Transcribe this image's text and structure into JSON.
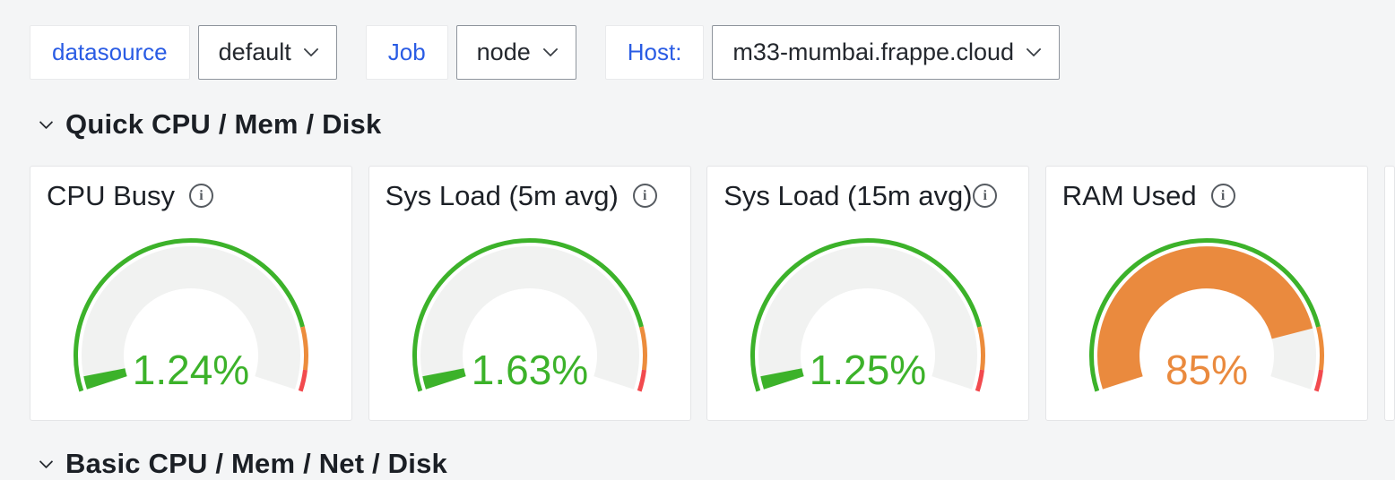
{
  "filters": {
    "groups": [
      {
        "label": "datasource",
        "value": "default"
      },
      {
        "label": "Job",
        "value": "node"
      },
      {
        "label": "Host:",
        "value": "m33-mumbai.frappe.cloud"
      }
    ]
  },
  "sections": {
    "quick": {
      "title": "Quick CPU / Mem / Disk"
    },
    "basic": {
      "title": "Basic CPU / Mem / Net / Disk"
    }
  },
  "panels": [
    {
      "title": "CPU Busy",
      "value": 1.24,
      "display": "1.24%",
      "state": "ok"
    },
    {
      "title": "Sys Load (5m avg)",
      "value": 1.63,
      "display": "1.63%",
      "state": "ok"
    },
    {
      "title": "Sys Load (15m avg)",
      "value": 1.25,
      "display": "1.25%",
      "state": "ok"
    },
    {
      "title": "RAM Used",
      "value": 85,
      "display": "85%",
      "state": "warning"
    }
  ],
  "gauge": {
    "min": 0,
    "max": 100,
    "unit": "%",
    "thresholds": [
      {
        "from": 0,
        "to": 85,
        "color": "#3cb22a"
      },
      {
        "from": 85,
        "to": 95,
        "color": "#ec8c3c"
      },
      {
        "from": 95,
        "to": 100,
        "color": "#f24a4e"
      }
    ]
  },
  "colors": {
    "ok": "#3cb22a",
    "warning": "#ea8a3e",
    "link": "#2a5ce4",
    "page_bg": "#f4f5f6",
    "panel_bg": "#ffffff",
    "gauge_track": "#f1f2f1"
  },
  "icons": {
    "info": "i"
  }
}
